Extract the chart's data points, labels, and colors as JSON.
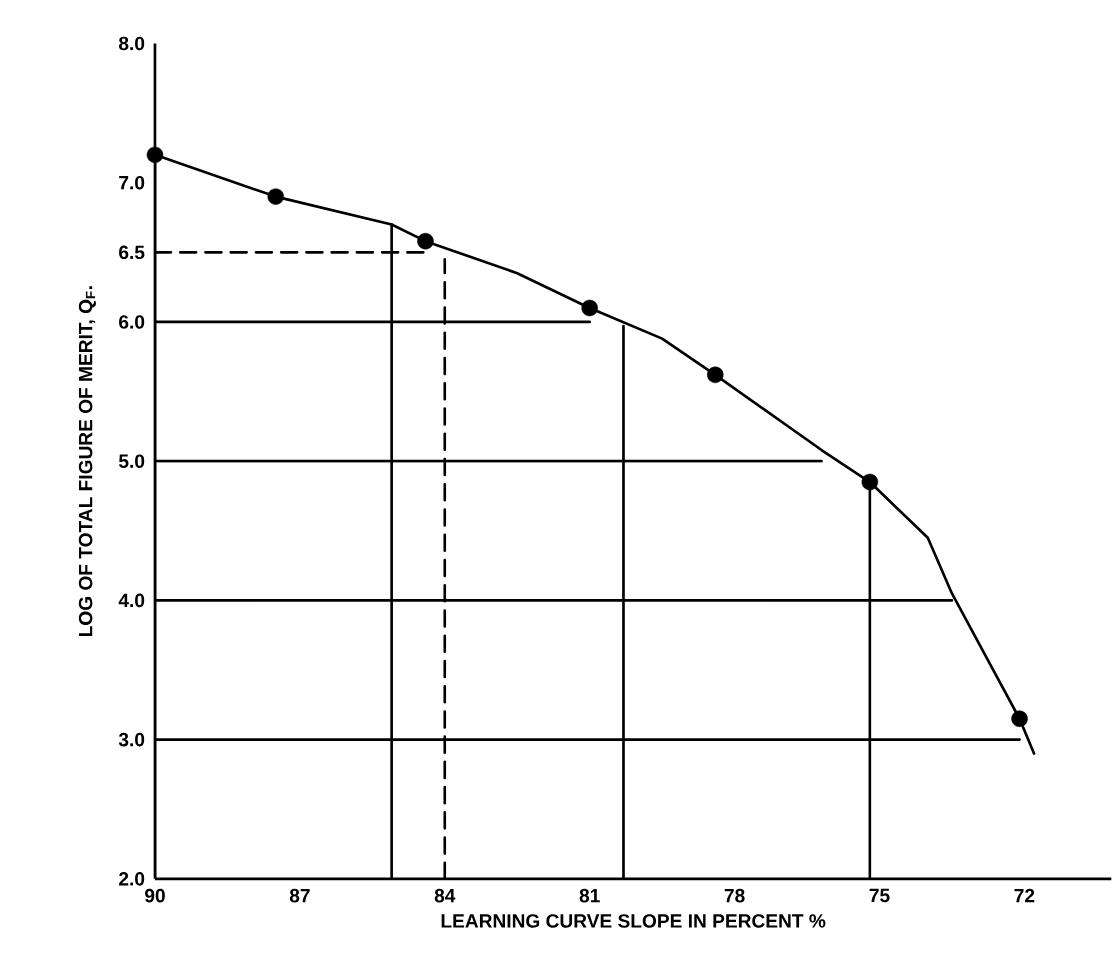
{
  "chart_data": {
    "type": "line",
    "xlabel": "LEARNING CURVE SLOPE IN PERCENT %",
    "ylabel": "LOG OF TOTAL FIGURE OF MERIT, Q$_{F}$.",
    "xlim": [
      90,
      70.2
    ],
    "ylim": [
      2,
      8
    ],
    "xticks": [
      90,
      87,
      84,
      81,
      78,
      75,
      72
    ],
    "yticks": [
      {
        "value": 2,
        "label": "2.0"
      },
      {
        "value": 3,
        "label": "3.0"
      },
      {
        "value": 4,
        "label": "4.0"
      },
      {
        "value": 5,
        "label": "5.0"
      },
      {
        "value": 6,
        "label": "6.0"
      },
      {
        "value": 6.5,
        "label": "6.5"
      },
      {
        "value": 7,
        "label": "7.0"
      },
      {
        "value": 8,
        "label": "8.0"
      }
    ],
    "grid": false,
    "series": [
      {
        "color": "#000000",
        "x": [
          90,
          87.5,
          85.1,
          84.4,
          82.5,
          81,
          79.5,
          78.4,
          76.2,
          75.2,
          74,
          73.5,
          72.8,
          72.1,
          71.8
        ],
        "values": [
          7.2,
          6.9,
          6.7,
          6.58,
          6.35,
          6.1,
          5.88,
          5.62,
          5.08,
          4.85,
          4.45,
          4.05,
          3.6,
          3.15,
          2.9
        ]
      },
      {
        "type": "scatter",
        "marker": "circle",
        "color": "#000000",
        "x": [
          90,
          87.5,
          84.4,
          81,
          78.4,
          75.2,
          72.1
        ],
        "values": [
          7.2,
          6.9,
          6.58,
          6.1,
          5.62,
          4.85,
          3.15
        ]
      },
      {
        "color": "#000000",
        "x": [
          90,
          81
        ],
        "values": [
          6,
          6
        ]
      },
      {
        "color": "#000000",
        "x": [
          90,
          76.2
        ],
        "values": [
          5,
          5
        ]
      },
      {
        "color": "#000000",
        "x": [
          90,
          73.5
        ],
        "values": [
          4,
          4
        ]
      },
      {
        "color": "#000000",
        "x": [
          90,
          72.1
        ],
        "values": [
          3,
          3
        ]
      },
      {
        "color": "#000000",
        "x": [
          90,
          90
        ],
        "values": [
          2,
          7.2
        ]
      },
      {
        "color": "#000000",
        "x": [
          85.1,
          85.1
        ],
        "values": [
          2,
          6.7
        ]
      },
      {
        "color": "#000000",
        "x": [
          80.3,
          80.3
        ],
        "values": [
          2,
          5.97
        ]
      },
      {
        "color": "#000000",
        "x": [
          75.2,
          75.2
        ],
        "values": [
          2,
          4.85
        ]
      },
      {
        "line_style": "dashed",
        "color": "#000000",
        "x": [
          90,
          84.4
        ],
        "values": [
          6.5,
          6.5
        ]
      },
      {
        "line_style": "dashed",
        "color": "#000000",
        "x": [
          84,
          84
        ],
        "values": [
          2,
          6.45
        ]
      }
    ]
  }
}
